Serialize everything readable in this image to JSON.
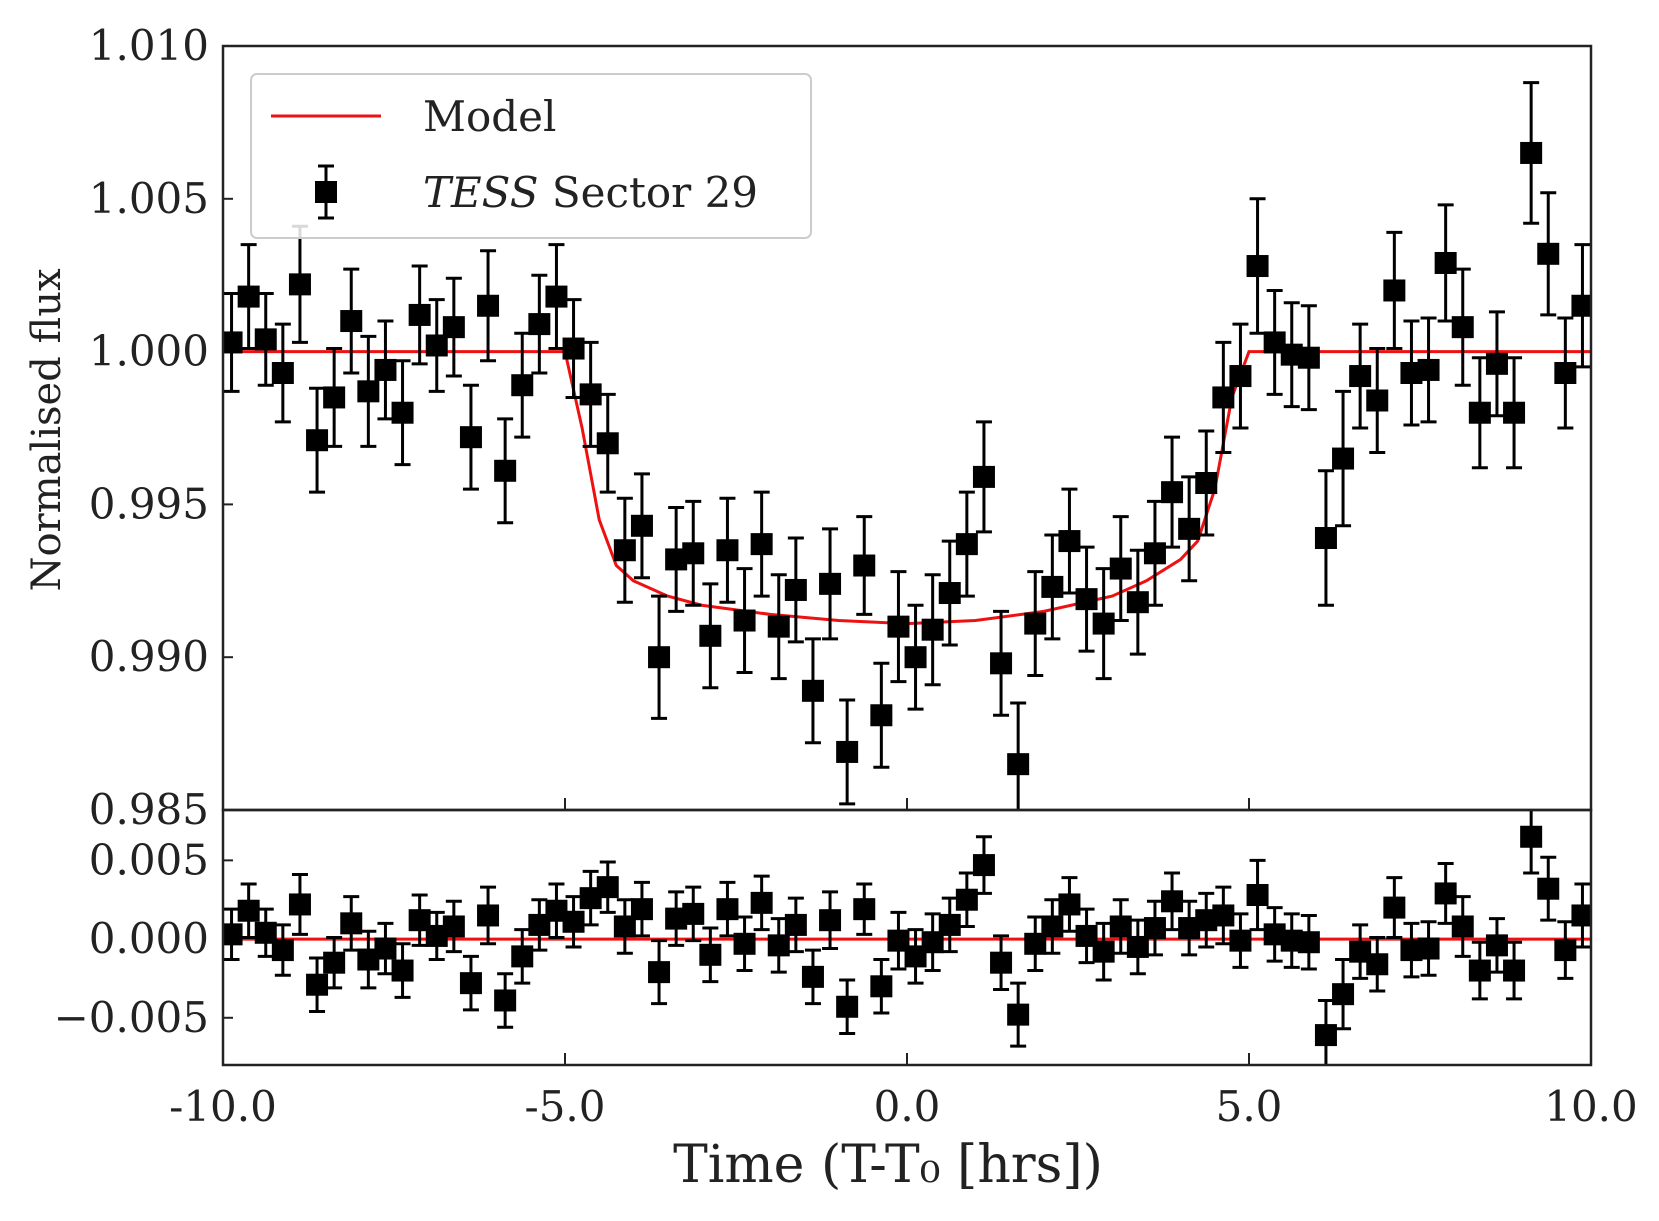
{
  "chart_data": [
    {
      "type": "errorbar",
      "ylabel": "Normalised flux",
      "xlim": [
        -10,
        10
      ],
      "ylim": [
        0.985,
        1.01
      ],
      "yticks": [
        {
          "value": 0.985,
          "label": "0.985"
        },
        {
          "value": 0.99,
          "label": "0.990"
        },
        {
          "value": 0.995,
          "label": "0.995"
        },
        {
          "value": 1.0,
          "label": "1.000"
        },
        {
          "value": 1.005,
          "label": "1.005"
        },
        {
          "value": 1.01,
          "label": "1.010"
        }
      ],
      "legend": "upper left",
      "series": [
        {
          "name": "Model",
          "type": "line",
          "color": "#ee1111",
          "x": [
            -10,
            -5,
            -4.75,
            -4.5,
            -4.25,
            -4,
            -3.5,
            -3,
            -2,
            -1,
            0,
            1,
            2,
            3,
            3.5,
            4,
            4.25,
            4.5,
            4.75,
            5,
            10
          ],
          "values": [
            1.0,
            1.0,
            0.9975,
            0.9945,
            0.993,
            0.9925,
            0.992,
            0.9917,
            0.9914,
            0.9912,
            0.9911,
            0.9912,
            0.9915,
            0.992,
            0.9925,
            0.9932,
            0.9938,
            0.9955,
            0.9985,
            1.0,
            1.0
          ]
        },
        {
          "name": "TESS Sector 29",
          "type": "errorbar",
          "color": "#000000",
          "x": [
            -9.875,
            -9.625,
            -9.375,
            -9.125,
            -8.875,
            -8.625,
            -8.375,
            -8.125,
            -7.875,
            -7.625,
            -7.375,
            -7.125,
            -6.875,
            -6.625,
            -6.375,
            -6.125,
            -5.875,
            -5.625,
            -5.375,
            -5.125,
            -4.875,
            -4.625,
            -4.375,
            -4.125,
            -3.875,
            -3.625,
            -3.375,
            -3.125,
            -2.875,
            -2.625,
            -2.375,
            -2.125,
            -1.875,
            -1.625,
            -1.375,
            -1.125,
            -0.875,
            -0.625,
            -0.375,
            -0.125,
            0.125,
            0.375,
            0.625,
            0.875,
            1.125,
            1.375,
            1.625,
            1.875,
            2.125,
            2.375,
            2.625,
            2.875,
            3.125,
            3.375,
            3.625,
            3.875,
            4.125,
            4.375,
            4.625,
            4.875,
            5.125,
            5.375,
            5.625,
            5.875,
            6.125,
            6.375,
            6.625,
            6.875,
            7.125,
            7.375,
            7.625,
            7.875,
            8.125,
            8.375,
            8.625,
            8.875,
            9.125,
            9.375,
            9.625,
            9.875
          ],
          "values": [
            1.0003,
            1.0018,
            1.0004,
            0.9993,
            1.0022,
            0.9971,
            0.9985,
            1.001,
            0.9987,
            0.9994,
            0.998,
            1.0012,
            1.0002,
            1.0008,
            0.9972,
            1.0015,
            0.9961,
            0.9989,
            1.0009,
            1.0018,
            1.0001,
            0.9986,
            0.997,
            0.9935,
            0.9943,
            0.99,
            0.9932,
            0.9934,
            0.9907,
            0.9935,
            0.9912,
            0.9937,
            0.991,
            0.9922,
            0.9889,
            0.9924,
            0.9869,
            0.993,
            0.9881,
            0.991,
            0.99,
            0.9909,
            0.9921,
            0.9937,
            0.9959,
            0.9898,
            0.9865,
            0.9911,
            0.9923,
            0.9938,
            0.9919,
            0.9911,
            0.9929,
            0.9918,
            0.9934,
            0.9954,
            0.9942,
            0.9957,
            0.9985,
            0.9992,
            1.0028,
            1.0003,
            0.9999,
            0.9998,
            0.9939,
            0.9965,
            0.9992,
            0.9984,
            1.002,
            0.9993,
            0.9994,
            1.0029,
            1.0008,
            0.998,
            0.9996,
            0.998,
            1.0065,
            1.0032,
            0.9993,
            1.0015
          ],
          "errors": [
            0.0016,
            0.0017,
            0.0015,
            0.0016,
            0.0019,
            0.0017,
            0.0016,
            0.0017,
            0.0018,
            0.0016,
            0.0017,
            0.0016,
            0.0015,
            0.0016,
            0.0017,
            0.0018,
            0.0017,
            0.0017,
            0.0016,
            0.0017,
            0.0016,
            0.0017,
            0.0016,
            0.0017,
            0.0017,
            0.002,
            0.0017,
            0.0017,
            0.0017,
            0.0017,
            0.0017,
            0.0017,
            0.0017,
            0.0017,
            0.0017,
            0.0018,
            0.0017,
            0.0016,
            0.0017,
            0.0018,
            0.0017,
            0.0018,
            0.0017,
            0.0017,
            0.0018,
            0.0017,
            0.002,
            0.0017,
            0.0017,
            0.0017,
            0.0017,
            0.0018,
            0.0017,
            0.0017,
            0.0017,
            0.0018,
            0.0017,
            0.0017,
            0.0018,
            0.0017,
            0.0022,
            0.0017,
            0.0017,
            0.0017,
            0.0022,
            0.0022,
            0.0017,
            0.0017,
            0.0019,
            0.0017,
            0.0017,
            0.0019,
            0.0019,
            0.0018,
            0.0017,
            0.0018,
            0.0023,
            0.002,
            0.0018,
            0.002
          ]
        }
      ]
    },
    {
      "type": "errorbar",
      "xlabel": "Time (T-T₀ [hrs])",
      "xlim": [
        -10,
        10
      ],
      "ylim": [
        -0.008,
        0.0082
      ],
      "xticks": [
        {
          "value": -10,
          "label": "-10.0"
        },
        {
          "value": -5,
          "label": "-5.0"
        },
        {
          "value": 0,
          "label": "0.0"
        },
        {
          "value": 5,
          "label": "5.0"
        },
        {
          "value": 10,
          "label": "10.0"
        }
      ],
      "yticks": [
        {
          "value": -0.005,
          "label": "−0.005"
        },
        {
          "value": 0,
          "label": "0.000"
        },
        {
          "value": 0.005,
          "label": "0.005"
        }
      ],
      "series": [
        {
          "type": "line",
          "color": "#ee1111",
          "x": [
            -10,
            10
          ],
          "values": [
            0,
            0
          ]
        },
        {
          "type": "errorbar",
          "color": "#000000",
          "x": [
            -9.875,
            -9.625,
            -9.375,
            -9.125,
            -8.875,
            -8.625,
            -8.375,
            -8.125,
            -7.875,
            -7.625,
            -7.375,
            -7.125,
            -6.875,
            -6.625,
            -6.375,
            -6.125,
            -5.875,
            -5.625,
            -5.375,
            -5.125,
            -4.875,
            -4.625,
            -4.375,
            -4.125,
            -3.875,
            -3.625,
            -3.375,
            -3.125,
            -2.875,
            -2.625,
            -2.375,
            -2.125,
            -1.875,
            -1.625,
            -1.375,
            -1.125,
            -0.875,
            -0.625,
            -0.375,
            -0.125,
            0.125,
            0.375,
            0.625,
            0.875,
            1.125,
            1.375,
            1.625,
            1.875,
            2.125,
            2.375,
            2.625,
            2.875,
            3.125,
            3.375,
            3.625,
            3.875,
            4.125,
            4.375,
            4.625,
            4.875,
            5.125,
            5.375,
            5.625,
            5.875,
            6.125,
            6.375,
            6.625,
            6.875,
            7.125,
            7.375,
            7.625,
            7.875,
            8.125,
            8.375,
            8.625,
            8.875,
            9.125,
            9.375,
            9.625,
            9.875
          ],
          "values": [
            0.0003,
            0.0018,
            0.0004,
            -0.0007,
            0.0022,
            -0.0029,
            -0.0015,
            0.001,
            -0.0013,
            -0.0006,
            -0.002,
            0.0012,
            0.0002,
            0.0008,
            -0.0028,
            0.0015,
            -0.0039,
            -0.0011,
            0.0009,
            0.0018,
            0.0011,
            0.0026,
            0.0033,
            0.0008,
            0.0019,
            -0.0021,
            0.0013,
            0.0016,
            -0.001,
            0.0019,
            -0.0003,
            0.0023,
            -0.0004,
            0.0009,
            -0.0024,
            0.0012,
            -0.0043,
            0.0019,
            -0.003,
            -0.0001,
            -0.0011,
            -0.0002,
            0.0009,
            0.0025,
            0.0047,
            -0.0015,
            -0.0048,
            -0.0003,
            0.0008,
            0.0022,
            0.0002,
            -0.0008,
            0.0008,
            -0.0005,
            0.0007,
            0.0024,
            0.0007,
            0.0012,
            0.0015,
            -0.0001,
            0.0028,
            0.0003,
            -0.0001,
            -0.0002,
            -0.0061,
            -0.0035,
            -0.0008,
            -0.0016,
            0.002,
            -0.0007,
            -0.0006,
            0.0029,
            0.0008,
            -0.002,
            -0.0004,
            -0.002,
            0.0065,
            0.0032,
            -0.0007,
            0.0015
          ],
          "errors": [
            0.0016,
            0.0017,
            0.0015,
            0.0016,
            0.0019,
            0.0017,
            0.0016,
            0.0017,
            0.0018,
            0.0016,
            0.0017,
            0.0016,
            0.0015,
            0.0016,
            0.0017,
            0.0018,
            0.0017,
            0.0017,
            0.0016,
            0.0017,
            0.0016,
            0.0017,
            0.0016,
            0.0017,
            0.0017,
            0.002,
            0.0017,
            0.0017,
            0.0017,
            0.0017,
            0.0017,
            0.0017,
            0.0017,
            0.0017,
            0.0017,
            0.0018,
            0.0017,
            0.0016,
            0.0017,
            0.0018,
            0.0017,
            0.0018,
            0.0017,
            0.0017,
            0.0018,
            0.0017,
            0.002,
            0.0017,
            0.0017,
            0.0017,
            0.0017,
            0.0018,
            0.0017,
            0.0017,
            0.0017,
            0.0018,
            0.0017,
            0.0017,
            0.0018,
            0.0017,
            0.0022,
            0.0017,
            0.0017,
            0.0017,
            0.0022,
            0.0022,
            0.0017,
            0.0017,
            0.0019,
            0.0017,
            0.0017,
            0.0019,
            0.0019,
            0.0018,
            0.0017,
            0.0018,
            0.0023,
            0.002,
            0.0018,
            0.002
          ]
        }
      ]
    }
  ]
}
